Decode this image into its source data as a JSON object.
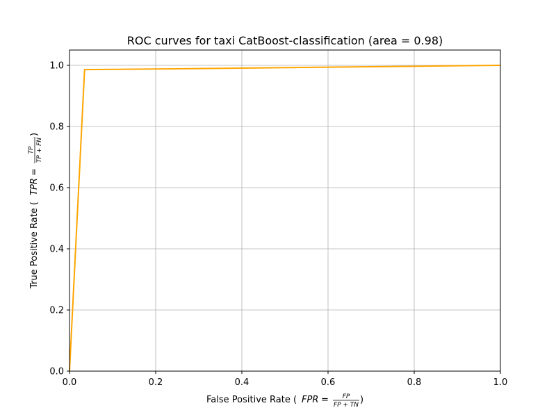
{
  "chart_data": {
    "type": "line",
    "title": "ROC curves for taxi CatBoost-classification (area = 0.98)",
    "xlabel": {
      "prefix": "False Positive Rate (",
      "lhs": "FPR",
      "equals": " = ",
      "numerator": "FP",
      "denominator": "FP + TN",
      "suffix": ")"
    },
    "ylabel": {
      "prefix": "True Positive Rate (",
      "lhs": "TPR",
      "equals": " = ",
      "numerator": "TP",
      "denominator": "TP + FN",
      "suffix": ")"
    },
    "xlim": [
      0.0,
      1.0
    ],
    "ylim": [
      0.0,
      1.05
    ],
    "xticks": [
      0.0,
      0.2,
      0.4,
      0.6,
      0.8,
      1.0
    ],
    "xtick_labels": [
      "0.0",
      "0.2",
      "0.4",
      "0.6",
      "0.8",
      "1.0"
    ],
    "yticks": [
      0.0,
      0.2,
      0.4,
      0.6,
      0.8,
      1.0
    ],
    "ytick_labels": [
      "0.0",
      "0.2",
      "0.4",
      "0.6",
      "0.8",
      "1.0"
    ],
    "grid": true,
    "series": [
      {
        "color": "#ffa500",
        "x": [
          0.0,
          0.035,
          0.2,
          0.4,
          0.6,
          0.8,
          1.0
        ],
        "y": [
          0.0,
          0.986,
          0.988,
          0.991,
          0.994,
          0.997,
          1.0
        ]
      }
    ]
  }
}
